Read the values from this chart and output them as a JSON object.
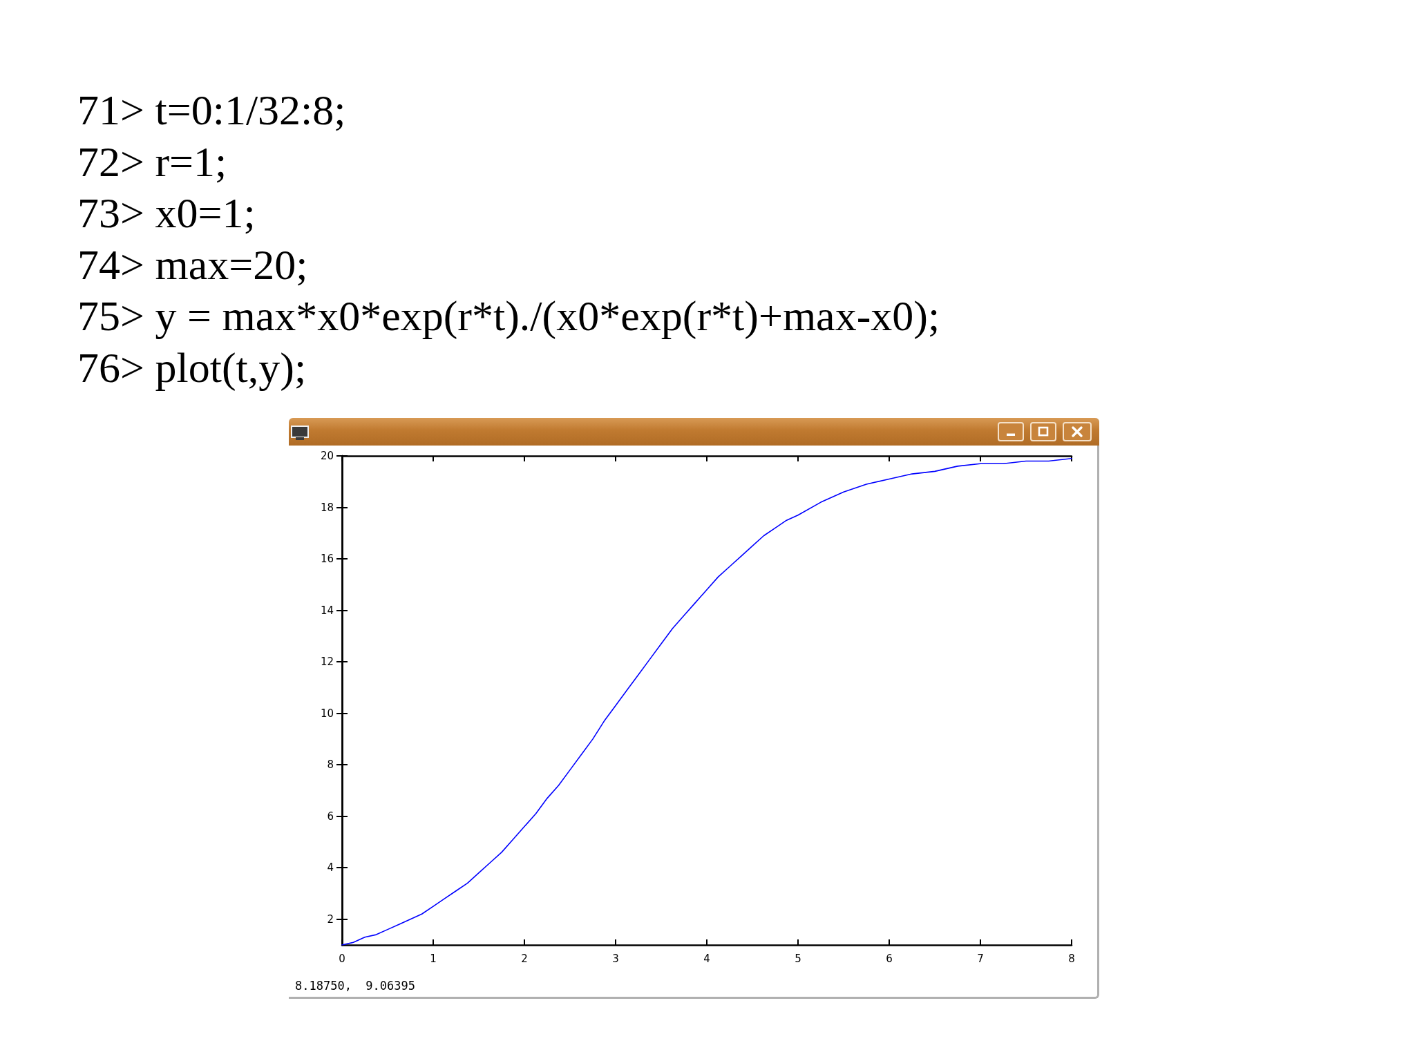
{
  "chart_data": {
    "type": "line",
    "annotations": [
      "71> t=0:1/32:8;",
      "72> r=1;",
      "73> x0=1;",
      "74> max=20;",
      "75> y = max*x0*exp(r*t)./(x0*exp(r*t)+max-x0);",
      "76> plot(t,y);",
      "8.18750,  9.06395"
    ],
    "x": [
      0,
      0.125,
      0.25,
      0.375,
      0.5,
      0.625,
      0.75,
      0.875,
      1,
      1.125,
      1.25,
      1.375,
      1.5,
      1.625,
      1.75,
      1.875,
      2,
      2.125,
      2.25,
      2.375,
      2.5,
      2.625,
      2.75,
      2.875,
      3,
      3.125,
      3.25,
      3.375,
      3.5,
      3.625,
      3.75,
      3.875,
      4,
      4.125,
      4.25,
      4.375,
      4.5,
      4.625,
      4.75,
      4.875,
      5,
      5.25,
      5.5,
      5.75,
      6,
      6.25,
      6.5,
      6.75,
      7,
      7.25,
      7.5,
      7.75,
      8
    ],
    "values": [
      1.0,
      1.1,
      1.3,
      1.4,
      1.6,
      1.8,
      2.0,
      2.2,
      2.5,
      2.8,
      3.1,
      3.4,
      3.8,
      4.2,
      4.6,
      5.1,
      5.6,
      6.1,
      6.7,
      7.2,
      7.8,
      8.4,
      9.0,
      9.7,
      10.3,
      10.9,
      11.5,
      12.1,
      12.7,
      13.3,
      13.8,
      14.3,
      14.8,
      15.3,
      15.7,
      16.1,
      16.5,
      16.9,
      17.2,
      17.5,
      17.7,
      18.2,
      18.6,
      18.9,
      19.1,
      19.3,
      19.4,
      19.6,
      19.7,
      19.7,
      19.8,
      19.8,
      19.9
    ],
    "color": "#0000ff",
    "xlim": [
      0,
      8
    ],
    "xticks": [
      0,
      1,
      2,
      3,
      4,
      5,
      6,
      7,
      8
    ],
    "ylim": [
      1,
      20
    ],
    "yticks": [
      2,
      4,
      6,
      8,
      10,
      12,
      14,
      16,
      18,
      20
    ],
    "marker": "none",
    "line_style": "solid"
  }
}
